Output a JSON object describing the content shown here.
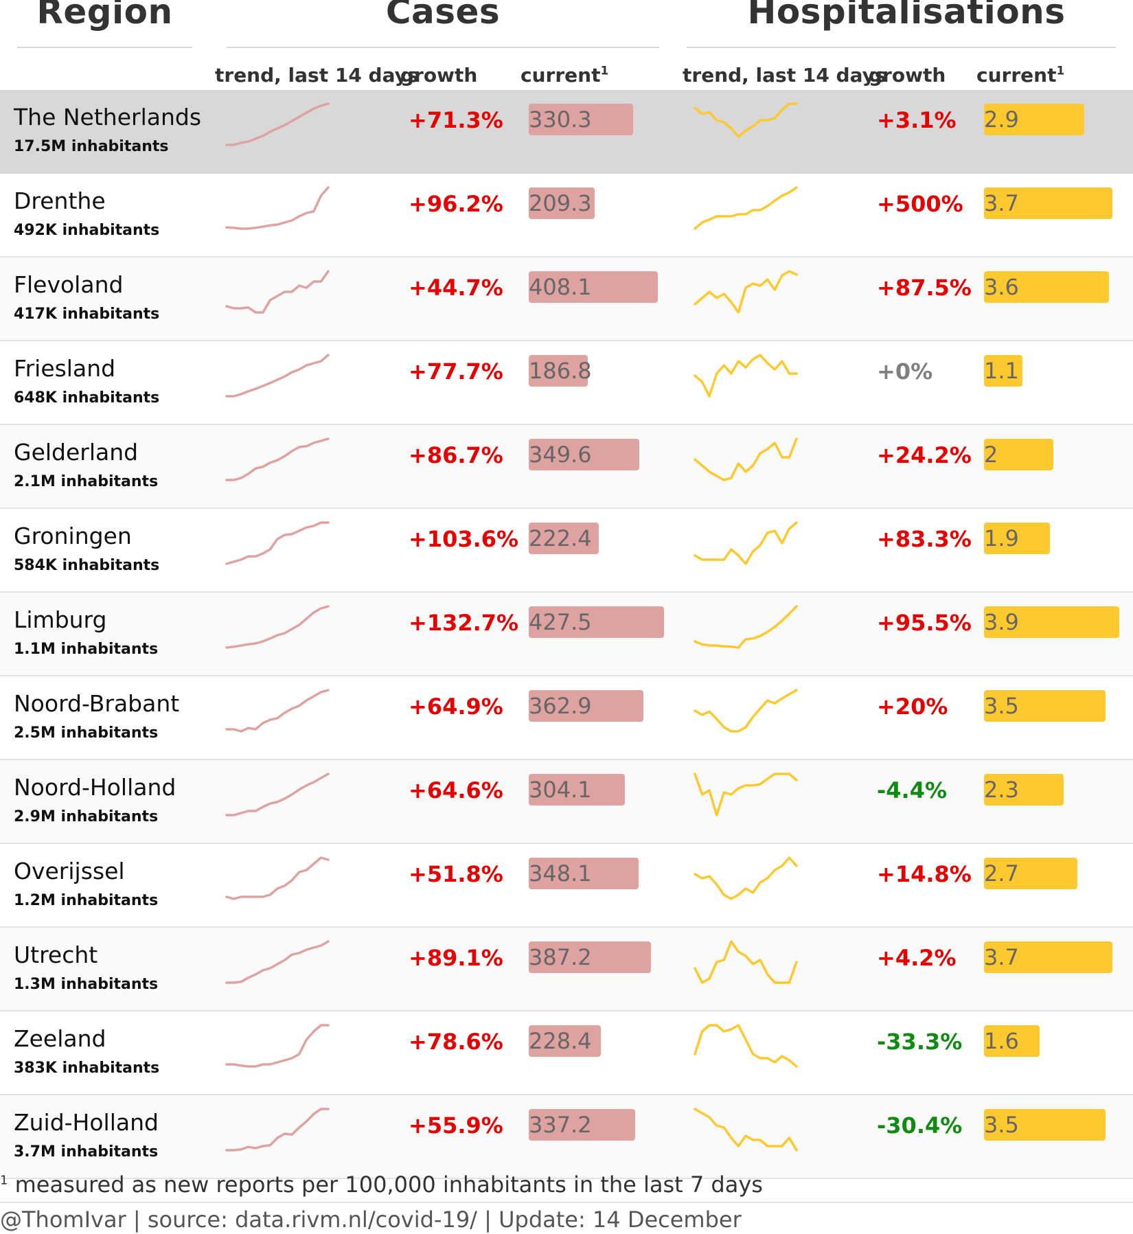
{
  "header": {
    "region": "Region",
    "cases": "Cases",
    "hospitalisations": "Hospitalisations",
    "cases_trend": "trend, last 14 days",
    "cases_growth": "growth",
    "cases_current": "current",
    "hosp_trend": "trend, last 14 days",
    "hosp_growth": "growth",
    "hosp_current": "current",
    "superscript": "1"
  },
  "footnote": {
    "marker": "1",
    "text": "measured as new reports per 100,000 inhabitants in the last 7 days"
  },
  "credit": "@ThomIvar | source: data.rivm.nl/covid-19/ | Update: 14 December",
  "colors": {
    "cases_line": "#dea3a1",
    "cases_bar": "#dea3a1",
    "hosp_line": "#fec82f",
    "hosp_bar": "#fec82f",
    "growth_up": "#e60000",
    "growth_down": "#118a11",
    "growth_flat": "#808080",
    "national_row": "#d8d8d8"
  },
  "chart_data": {
    "type": "table",
    "scales": {
      "cases_current_max": 427.5,
      "hosp_current_max": 3.9
    },
    "rows": [
      {
        "name": "The Netherlands",
        "inhabitants": "17.5M inhabitants",
        "cases_growth": "+71.3%",
        "cases_current": 330.3,
        "hosp_growth": "+3.1%",
        "hosp_current": 2.9,
        "cases_trend": [
          0,
          0,
          0.05,
          0.08,
          0.15,
          0.22,
          0.32,
          0.4,
          0.48,
          0.58,
          0.68,
          0.78,
          0.88,
          0.95,
          1
        ],
        "hosp_trend": [
          0.9,
          0.75,
          0.8,
          0.6,
          0.55,
          0.4,
          0.2,
          0.35,
          0.45,
          0.6,
          0.6,
          0.65,
          0.85,
          1,
          1
        ]
      },
      {
        "name": "Drenthe",
        "inhabitants": "492K inhabitants",
        "cases_growth": "+96.2%",
        "cases_current": 209.3,
        "hosp_growth": "+500%",
        "hosp_current": 3.7,
        "cases_trend": [
          0.03,
          0.02,
          0,
          0,
          0.02,
          0.05,
          0.08,
          0.1,
          0.15,
          0.2,
          0.3,
          0.38,
          0.42,
          0.8,
          1
        ],
        "hosp_trend": [
          0,
          0.15,
          0.22,
          0.3,
          0.3,
          0.3,
          0.35,
          0.35,
          0.45,
          0.45,
          0.55,
          0.68,
          0.8,
          0.88,
          1
        ]
      },
      {
        "name": "Flevoland",
        "inhabitants": "417K inhabitants",
        "cases_growth": "+44.7%",
        "cases_current": 408.1,
        "hosp_growth": "+87.5%",
        "hosp_current": 3.6,
        "cases_trend": [
          0.15,
          0.1,
          0.1,
          0.12,
          0,
          0,
          0.3,
          0.4,
          0.5,
          0.5,
          0.65,
          0.6,
          0.75,
          0.75,
          1
        ],
        "hosp_trend": [
          0.2,
          0.35,
          0.5,
          0.35,
          0.45,
          0.25,
          0,
          0.6,
          0.7,
          0.65,
          0.8,
          0.55,
          0.9,
          1,
          0.92
        ]
      },
      {
        "name": "Friesland",
        "inhabitants": "648K inhabitants",
        "cases_growth": "+77.7%",
        "cases_current": 186.8,
        "hosp_growth": "+0%",
        "hosp_current": 1.1,
        "cases_trend": [
          0,
          0,
          0.05,
          0.12,
          0.18,
          0.25,
          0.32,
          0.4,
          0.48,
          0.58,
          0.65,
          0.75,
          0.8,
          0.85,
          1
        ],
        "hosp_trend": [
          0.5,
          0.35,
          0,
          0.55,
          0.75,
          0.55,
          0.85,
          0.7,
          0.9,
          1,
          0.8,
          0.65,
          0.85,
          0.55,
          0.55
        ]
      },
      {
        "name": "Gelderland",
        "inhabitants": "2.1M inhabitants",
        "cases_growth": "+86.7%",
        "cases_current": 349.6,
        "hosp_growth": "+24.2%",
        "hosp_current": 2,
        "cases_trend": [
          0,
          0,
          0.05,
          0.15,
          0.28,
          0.32,
          0.42,
          0.48,
          0.58,
          0.7,
          0.8,
          0.82,
          0.9,
          0.95,
          1
        ],
        "hosp_trend": [
          0.5,
          0.35,
          0.2,
          0.1,
          0,
          0.05,
          0.4,
          0.2,
          0.35,
          0.65,
          0.75,
          0.9,
          0.55,
          0.55,
          1
        ]
      },
      {
        "name": "Groningen",
        "inhabitants": "584K inhabitants",
        "cases_growth": "+103.6%",
        "cases_current": 222.4,
        "hosp_growth": "+83.3%",
        "hosp_current": 1.9,
        "cases_trend": [
          0,
          0.05,
          0.1,
          0.18,
          0.18,
          0.25,
          0.35,
          0.6,
          0.7,
          0.72,
          0.8,
          0.88,
          0.92,
          1,
          1
        ],
        "hosp_trend": [
          0.2,
          0.1,
          0.1,
          0.1,
          0.1,
          0.35,
          0.2,
          0,
          0.3,
          0.45,
          0.75,
          0.8,
          0.5,
          0.85,
          1
        ]
      },
      {
        "name": "Limburg",
        "inhabitants": "1.1M inhabitants",
        "cases_growth": "+132.7%",
        "cases_current": 427.5,
        "hosp_growth": "+95.5%",
        "hosp_current": 3.9,
        "cases_trend": [
          0,
          0.02,
          0.05,
          0.08,
          0.1,
          0.15,
          0.22,
          0.3,
          0.35,
          0.45,
          0.55,
          0.7,
          0.85,
          0.95,
          1
        ],
        "hosp_trend": [
          0.15,
          0.08,
          0.05,
          0.05,
          0.03,
          0.02,
          0,
          0.2,
          0.22,
          0.28,
          0.38,
          0.5,
          0.65,
          0.82,
          1
        ]
      },
      {
        "name": "Noord-Brabant",
        "inhabitants": "2.5M inhabitants",
        "cases_growth": "+64.9%",
        "cases_current": 362.9,
        "hosp_growth": "+20%",
        "hosp_current": 3.5,
        "cases_trend": [
          0.05,
          0.05,
          0,
          0.08,
          0.05,
          0.2,
          0.28,
          0.32,
          0.45,
          0.55,
          0.62,
          0.75,
          0.85,
          0.95,
          1
        ],
        "hosp_trend": [
          0.5,
          0.4,
          0.48,
          0.3,
          0.1,
          0,
          0,
          0.1,
          0.35,
          0.55,
          0.75,
          0.68,
          0.8,
          0.9,
          1
        ]
      },
      {
        "name": "Noord-Holland",
        "inhabitants": "2.9M inhabitants",
        "cases_growth": "+64.6%",
        "cases_current": 304.1,
        "hosp_growth": "-4.4%",
        "hosp_current": 2.3,
        "cases_trend": [
          0,
          0,
          0.05,
          0.1,
          0.1,
          0.2,
          0.28,
          0.32,
          0.4,
          0.5,
          0.62,
          0.72,
          0.8,
          0.9,
          1
        ],
        "hosp_trend": [
          1,
          0.5,
          0.6,
          0,
          0.55,
          0.5,
          0.65,
          0.72,
          0.72,
          0.75,
          0.88,
          1,
          1,
          1,
          0.85
        ]
      },
      {
        "name": "Overijssel",
        "inhabitants": "1.2M inhabitants",
        "cases_growth": "+51.8%",
        "cases_current": 348.1,
        "hosp_growth": "+14.8%",
        "hosp_current": 2.7,
        "cases_trend": [
          0.05,
          0,
          0.05,
          0.05,
          0.05,
          0.05,
          0.1,
          0.25,
          0.32,
          0.45,
          0.65,
          0.7,
          0.85,
          1,
          0.95
        ],
        "hosp_trend": [
          0.6,
          0.5,
          0.55,
          0.35,
          0.1,
          0,
          0.1,
          0.25,
          0.15,
          0.4,
          0.5,
          0.7,
          0.8,
          1,
          0.8
        ]
      },
      {
        "name": "Utrecht",
        "inhabitants": "1.3M inhabitants",
        "cases_growth": "+89.1%",
        "cases_current": 387.2,
        "hosp_growth": "+4.2%",
        "hosp_current": 3.7,
        "cases_trend": [
          0,
          0,
          0.02,
          0.12,
          0.2,
          0.3,
          0.35,
          0.45,
          0.55,
          0.68,
          0.72,
          0.8,
          0.85,
          0.9,
          1
        ],
        "hosp_trend": [
          0.35,
          0,
          0.1,
          0.5,
          0.55,
          1,
          0.75,
          0.65,
          0.45,
          0.55,
          0.2,
          0,
          0,
          0,
          0.5
        ]
      },
      {
        "name": "Zeeland",
        "inhabitants": "383K inhabitants",
        "cases_growth": "+78.6%",
        "cases_current": 228.4,
        "hosp_growth": "-33.3%",
        "hosp_current": 1.6,
        "cases_trend": [
          0.05,
          0.05,
          0.02,
          0,
          0,
          0.05,
          0.05,
          0.1,
          0.15,
          0.2,
          0.3,
          0.65,
          0.85,
          1,
          1
        ],
        "hosp_trend": [
          0.3,
          0.85,
          1,
          1,
          0.85,
          0.9,
          1,
          0.65,
          0.3,
          0.2,
          0.2,
          0.1,
          0.25,
          0.15,
          0
        ]
      },
      {
        "name": "Zuid-Holland",
        "inhabitants": "3.7M inhabitants",
        "cases_growth": "+55.9%",
        "cases_current": 337.2,
        "hosp_growth": "-30.4%",
        "hosp_current": 3.5,
        "cases_trend": [
          0,
          0,
          0.02,
          0.08,
          0.05,
          0.1,
          0.12,
          0.3,
          0.4,
          0.38,
          0.55,
          0.7,
          0.88,
          1,
          1
        ],
        "hosp_trend": [
          1,
          0.9,
          0.8,
          0.6,
          0.55,
          0.3,
          0.1,
          0.35,
          0.25,
          0.25,
          0.1,
          0.1,
          0.1,
          0.3,
          0
        ]
      }
    ]
  }
}
